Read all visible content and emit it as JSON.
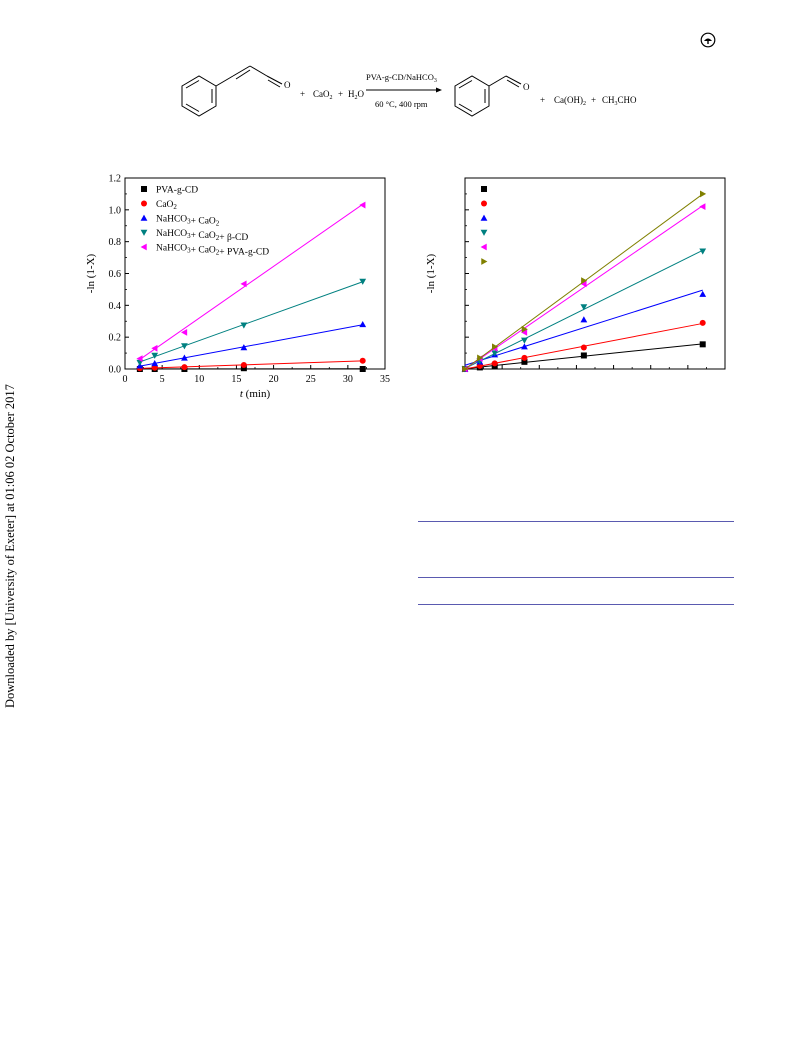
{
  "side_note": "Downloaded by [University of Exeter] at 01:06 02 October 2017",
  "scheme": {
    "reactant_plus": "+",
    "reactant1": "CaO",
    "reactant1_sub": "2",
    "reactant_plus2": "+",
    "reactant2": "H",
    "reactant2_sub": "2",
    "reactant2_tail": "O",
    "aldehyde_o": "O",
    "condition_top": "PVA-g-CD/NaHCO",
    "condition_top_sub": "3",
    "condition_bottom": "60 °C, 400 rpm",
    "product_plus": "+",
    "product1": "Ca(OH)",
    "product1_sub": "2",
    "product_plus2": "+",
    "product2": "CH",
    "product2_sub": "3",
    "product2_tail": "CHO"
  },
  "chart_data": [
    {
      "type": "scatter",
      "ylabel": "-ln (1-X)",
      "xlabel_italic": "t",
      "xlabel_rest": " (min)",
      "xlim": [
        0,
        35
      ],
      "ylim": [
        0,
        1.2
      ],
      "xticks": [
        "0",
        "5",
        "10",
        "15",
        "20",
        "25",
        "30",
        "35"
      ],
      "yticks": [
        "0.0",
        "0.2",
        "0.4",
        "0.6",
        "0.8",
        "1.0",
        "1.2"
      ],
      "fit_lines": true,
      "legend_position": "top-left",
      "series": [
        {
          "name": "PVA-g-CD",
          "color": "#000000",
          "marker": "square",
          "x": [
            2,
            4,
            8,
            16,
            32
          ],
          "y": [
            0.0,
            0.0,
            0.0,
            0.005,
            0.0
          ]
        },
        {
          "name": "CaO₂",
          "color": "#ff0000",
          "marker": "circle",
          "x": [
            2,
            4,
            8,
            16,
            32
          ],
          "y": [
            0.005,
            0.008,
            0.012,
            0.025,
            0.052
          ]
        },
        {
          "name": "NaHCO₃+ CaO₂",
          "color": "#0000ff",
          "marker": "triangle-up",
          "x": [
            2,
            4,
            8,
            16,
            32
          ],
          "y": [
            0.02,
            0.035,
            0.07,
            0.135,
            0.28
          ]
        },
        {
          "name": "NaHCO₃+ CaO₂+ β-CD",
          "color": "#008080",
          "marker": "triangle-down",
          "x": [
            2,
            4,
            8,
            16,
            32
          ],
          "y": [
            0.04,
            0.085,
            0.145,
            0.275,
            0.55
          ]
        },
        {
          "name": "NaHCO₃+ CaO₂+ PVA-g-CD",
          "color": "#ff00ff",
          "marker": "triangle-left",
          "x": [
            2,
            4,
            8,
            16,
            32
          ],
          "y": [
            0.065,
            0.13,
            0.23,
            0.535,
            1.03
          ]
        }
      ]
    },
    {
      "type": "scatter",
      "ylabel": "-ln (1-X)",
      "xlim": [
        0,
        35
      ],
      "ylim": [
        0,
        1.2
      ],
      "fit_lines": true,
      "legend_position": "top-left",
      "series": [
        {
          "color": "#000000",
          "marker": "square",
          "x": [
            0,
            2,
            4,
            8,
            16,
            32
          ],
          "y": [
            0.0,
            0.01,
            0.022,
            0.045,
            0.085,
            0.155
          ]
        },
        {
          "color": "#ff0000",
          "marker": "circle",
          "x": [
            0,
            2,
            4,
            8,
            16,
            32
          ],
          "y": [
            0.0,
            0.02,
            0.035,
            0.07,
            0.135,
            0.29
          ]
        },
        {
          "color": "#0000ff",
          "marker": "triangle-up",
          "x": [
            0,
            2,
            4,
            8,
            16,
            32
          ],
          "y": [
            0.0,
            0.045,
            0.09,
            0.14,
            0.31,
            0.47
          ]
        },
        {
          "color": "#008080",
          "marker": "triangle-down",
          "x": [
            0,
            2,
            4,
            8,
            16,
            32
          ],
          "y": [
            0.0,
            0.05,
            0.1,
            0.18,
            0.39,
            0.74
          ]
        },
        {
          "color": "#ff00ff",
          "marker": "triangle-left",
          "x": [
            0,
            2,
            4,
            8,
            16,
            32
          ],
          "y": [
            0.0,
            0.065,
            0.13,
            0.23,
            0.535,
            1.02
          ]
        },
        {
          "color": "#808000",
          "marker": "triangle-right",
          "x": [
            0,
            2,
            4,
            8,
            16,
            32
          ],
          "y": [
            0.0,
            0.07,
            0.14,
            0.25,
            0.555,
            1.1
          ]
        }
      ]
    }
  ]
}
